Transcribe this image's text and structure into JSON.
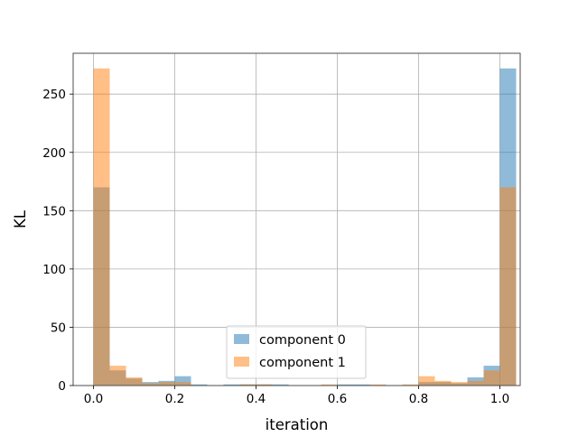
{
  "chart_data": {
    "type": "bar",
    "title": "",
    "xlabel": "iteration",
    "ylabel": "KL",
    "xlim": [
      -0.05,
      1.05
    ],
    "ylim": [
      0,
      285
    ],
    "grid": true,
    "legend_position": "bottom-center",
    "x_ticks": [
      0.0,
      0.2,
      0.4,
      0.6,
      0.8,
      1.0
    ],
    "x_tick_labels": [
      "0.0",
      "0.2",
      "0.4",
      "0.6",
      "0.8",
      "1.0"
    ],
    "y_ticks": [
      0,
      50,
      100,
      150,
      200,
      250
    ],
    "y_tick_labels": [
      "0",
      "50",
      "100",
      "150",
      "200",
      "250"
    ],
    "bin_edges": [
      0.0,
      0.04,
      0.08,
      0.12,
      0.16,
      0.2,
      0.24,
      0.28,
      0.32,
      0.36,
      0.4,
      0.44,
      0.48,
      0.52,
      0.56,
      0.6,
      0.64,
      0.68,
      0.72,
      0.76,
      0.8,
      0.84,
      0.88,
      0.92,
      0.96,
      1.0
    ],
    "series": [
      {
        "name": "component 0",
        "color": "#1f77b4",
        "values": [
          170,
          13,
          6,
          3,
          4,
          8,
          1,
          0,
          1,
          1,
          1,
          1,
          0,
          0,
          0,
          1,
          1,
          0,
          0,
          0,
          3,
          3,
          2,
          7,
          17,
          272
        ]
      },
      {
        "name": "component 1",
        "color": "#ff7f0e",
        "values": [
          272,
          17,
          7,
          2,
          3,
          3,
          0,
          0,
          0,
          1,
          1,
          0,
          0,
          0,
          1,
          0,
          0,
          1,
          0,
          1,
          8,
          4,
          3,
          4,
          13,
          170
        ]
      }
    ]
  }
}
